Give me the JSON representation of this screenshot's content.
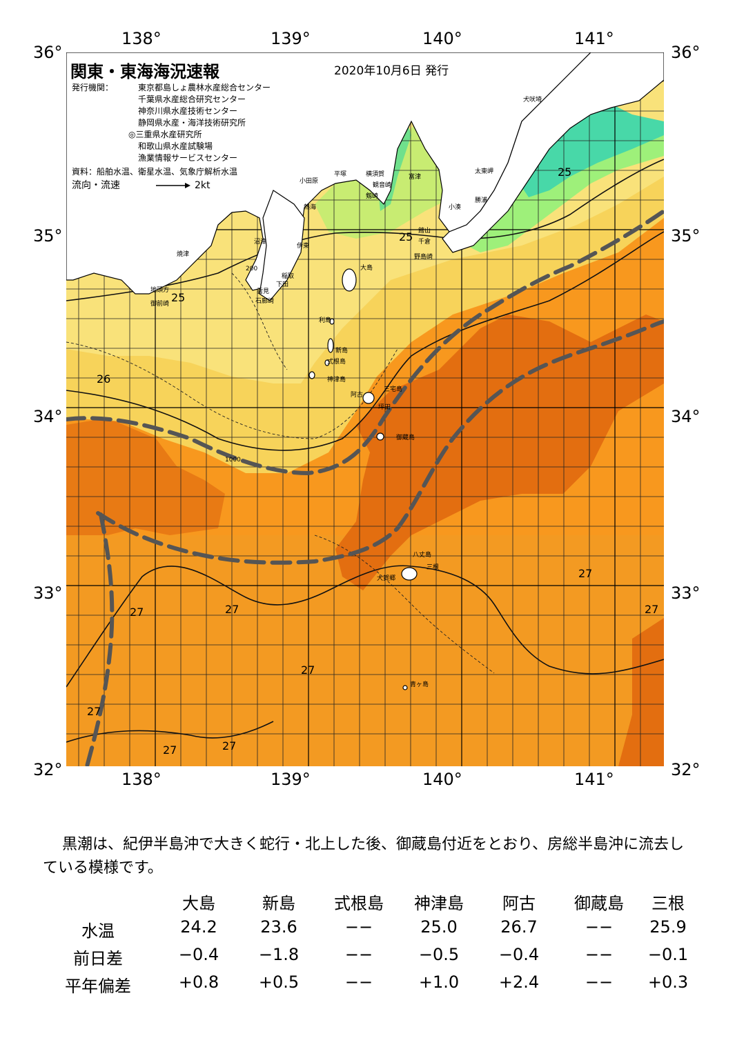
{
  "map": {
    "title": "関東・東海海況速報",
    "issue_date": "2020年10月6日 発行",
    "publisher_label": "発行機関：",
    "publishers": [
      "東京都島しょ農林水産総合センター",
      "千葉県水産総合研究センター",
      "神奈川県水産技術センター",
      "静岡県水産・海洋技術研究所",
      "◎三重県水産研究所",
      "和歌山県水産試験場",
      "漁業情報サービスセンター"
    ],
    "source": "資料：船舶水温、衛星水温、気象庁解析水温",
    "legend_flow": "流向・流速",
    "legend_speed": "2kt",
    "longitude_labels": [
      "138°",
      "139°",
      "140°",
      "141°"
    ],
    "latitude_labels": [
      "36°",
      "35°",
      "34°",
      "33°",
      "32°"
    ],
    "place_names": [
      "犬吠埼",
      "太東岬",
      "勝浦",
      "小湊",
      "館山",
      "千倉",
      "野島崎",
      "富津",
      "横須賀",
      "観音崎",
      "剱崎",
      "平塚",
      "小田原",
      "熱海",
      "伊東",
      "稲取",
      "下田",
      "石廊崎",
      "雲見",
      "沼津",
      "焼津",
      "地頭方",
      "御前崎",
      "大島",
      "利島",
      "新島",
      "式根島",
      "神津島",
      "阿古",
      "三宅島",
      "坪田",
      "御蔵島",
      "八丈島",
      "三根",
      "大賀郷",
      "青ヶ島"
    ],
    "isotherm_labels": [
      "25",
      "25",
      "25",
      "26",
      "27",
      "27",
      "27",
      "27",
      "27",
      "27",
      "27",
      "27"
    ],
    "depth_labels": [
      "200",
      "1000"
    ],
    "colors": {
      "t_below_22": "#48d8a8",
      "t_22_23": "#9ef07a",
      "t_24_25": "#f9e27a",
      "t_25_26": "#f7d35a",
      "t_26_27": "#f8981e",
      "t_27_28": "#f0901a",
      "t_above_28": "#e36e10",
      "kuroshio_axis": "#555555",
      "land": "#ffffff"
    }
  },
  "summary": "黒潮は、紀伊半島沖で大きく蛇行・北上した後、御蔵島付近をとおり、房総半島沖に流去している模様です。",
  "table": {
    "columns": [
      "大島",
      "新島",
      "式根島",
      "神津島",
      "阿古",
      "御蔵島",
      "三根"
    ],
    "rows": [
      {
        "label": "水温",
        "values": [
          "24.2",
          "23.6",
          "−−",
          "25.0",
          "26.7",
          "−−",
          "25.9"
        ]
      },
      {
        "label": "前日差",
        "values": [
          "−0.4",
          "−1.8",
          "−−",
          "−0.5",
          "−0.4",
          "−−",
          "−0.1"
        ]
      },
      {
        "label": "平年偏差",
        "values": [
          "+0.8",
          "+0.5",
          "−−",
          "+1.0",
          "+2.4",
          "−−",
          "+0.3"
        ]
      }
    ]
  }
}
